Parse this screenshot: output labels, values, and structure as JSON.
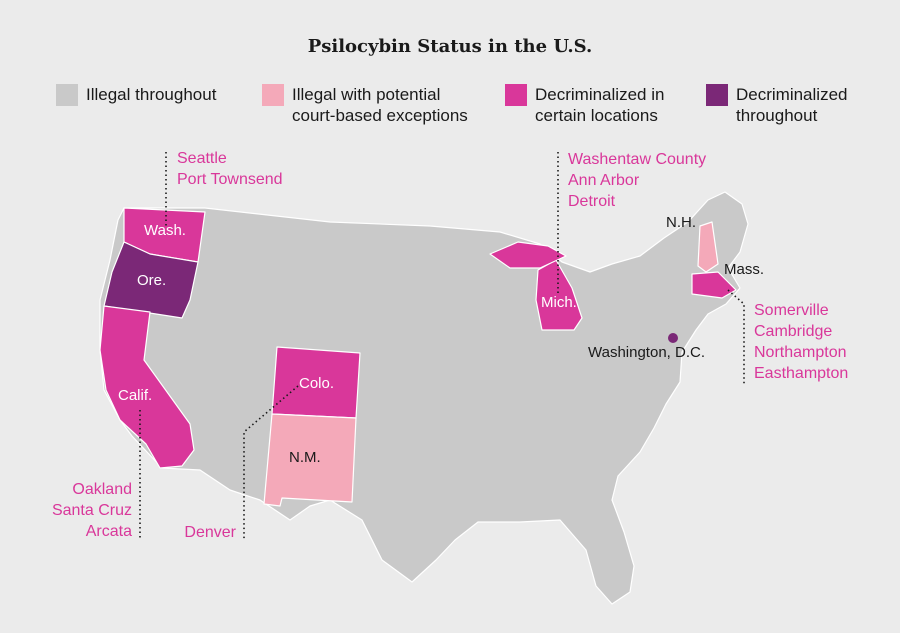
{
  "title": "Psilocybin Status in the U.S.",
  "colors": {
    "background": "#ebebeb",
    "state_fill": "#c9c9c9",
    "state_border": "#ffffff",
    "illegal": "#c9c9c9",
    "exceptions": "#f4a9b9",
    "decriminalized_local": "#d9379a",
    "decriminalized_state": "#7b2877"
  },
  "legend": [
    {
      "label": "Illegal throughout",
      "color": "#c9c9c9"
    },
    {
      "label": "Illegal with potential\ncourt-based exceptions",
      "color": "#f4a9b9"
    },
    {
      "label": "Decriminalized in\ncertain locations",
      "color": "#d9379a"
    },
    {
      "label": "Decriminalized\nthroughout",
      "color": "#7b2877"
    }
  ],
  "states": {
    "wash": "Wash.",
    "ore": "Ore.",
    "calif": "Calif.",
    "colo": "Colo.",
    "nm": "N.M.",
    "mich": "Mich.",
    "nh": "N.H.",
    "mass": "Mass.",
    "dc": "Washington, D.C."
  },
  "places": {
    "wash": "Seattle\nPort Townsend",
    "calif": "Oakland\nSanta Cruz\nArcata",
    "colo": "Denver",
    "mich": "Washentaw County\nAnn Arbor\nDetroit",
    "mass": "Somerville\nCambridge\nNorthampton\nEasthampton"
  }
}
